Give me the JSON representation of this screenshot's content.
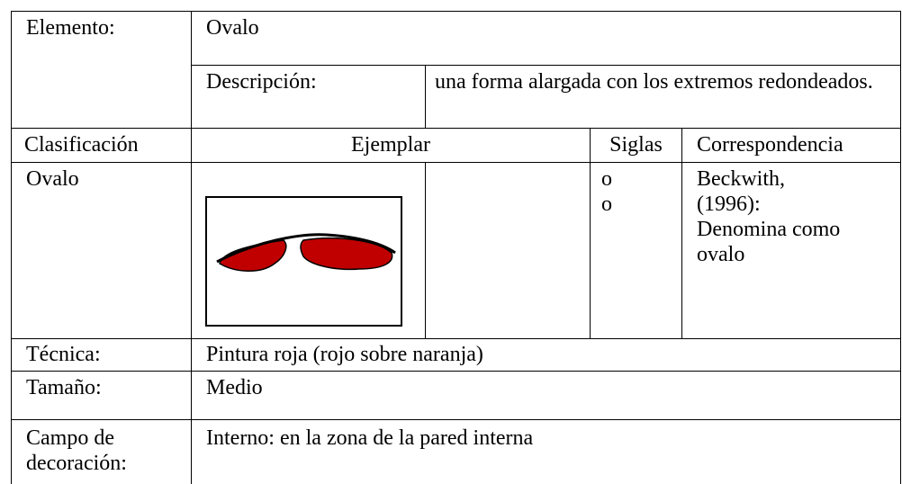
{
  "table": {
    "rows": [
      [
        "Elemento:",
        "Ovalo"
      ],
      [
        "Descripción:",
        "una forma alargada con los extremos redondeados."
      ],
      [
        "Clasificación",
        "Ejemplar",
        "Siglas",
        "Correspondencia"
      ],
      [
        "Ovalo",
        [
          "o",
          "o"
        ],
        [
          "Beckwith,",
          "(1996):",
          "Denomina como",
          "ovalo"
        ]
      ],
      [
        "Técnica:",
        "Pintura roja (rojo sobre naranja)"
      ],
      [
        "Tamaño:",
        "Medio"
      ],
      [
        [
          "Campo de",
          "decoración:"
        ],
        "Interno: en la zona de la pared interna"
      ]
    ]
  }
}
